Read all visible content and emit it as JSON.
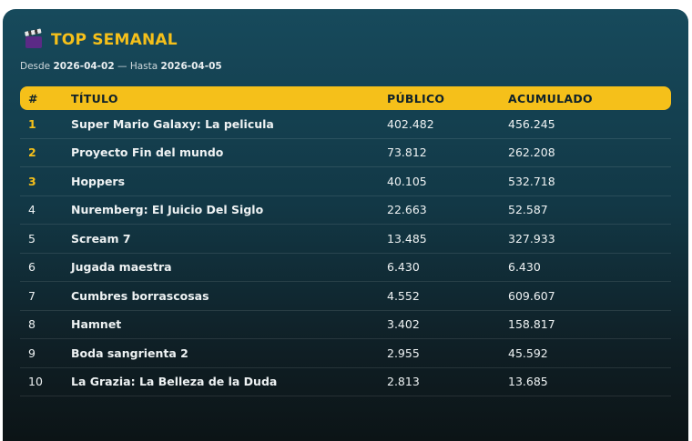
{
  "header": {
    "icon": "clapperboard-icon",
    "title": "TOP SEMANAL"
  },
  "range": {
    "from_label": "Desde",
    "from_date": "2026-04-02",
    "separator": "— Hasta",
    "to_date": "2026-04-05"
  },
  "table": {
    "columns": [
      "#",
      "TÍTULO",
      "PÚBLICO",
      "ACUMULADO"
    ],
    "rows": [
      {
        "rank": "1",
        "title": "Super Mario Galaxy: La pelicula",
        "public": "402.482",
        "cumulative": "456.245"
      },
      {
        "rank": "2",
        "title": "Proyecto Fin del mundo",
        "public": "73.812",
        "cumulative": "262.208"
      },
      {
        "rank": "3",
        "title": "Hoppers",
        "public": "40.105",
        "cumulative": "532.718"
      },
      {
        "rank": "4",
        "title": "Nuremberg: El Juicio Del Siglo",
        "public": "22.663",
        "cumulative": "52.587"
      },
      {
        "rank": "5",
        "title": "Scream 7",
        "public": "13.485",
        "cumulative": "327.933"
      },
      {
        "rank": "6",
        "title": "Jugada maestra",
        "public": "6.430",
        "cumulative": "6.430"
      },
      {
        "rank": "7",
        "title": "Cumbres borrascosas",
        "public": "4.552",
        "cumulative": "609.607"
      },
      {
        "rank": "8",
        "title": "Hamnet",
        "public": "3.402",
        "cumulative": "158.817"
      },
      {
        "rank": "9",
        "title": "Boda sangrienta 2",
        "public": "2.955",
        "cumulative": "45.592"
      },
      {
        "rank": "10",
        "title": "La Grazia: La Belleza de la Duda",
        "public": "2.813",
        "cumulative": "13.685"
      }
    ]
  },
  "colors": {
    "accent": "#f5c01a",
    "card_top": "#174a5c",
    "card_bottom": "#0c1416"
  }
}
